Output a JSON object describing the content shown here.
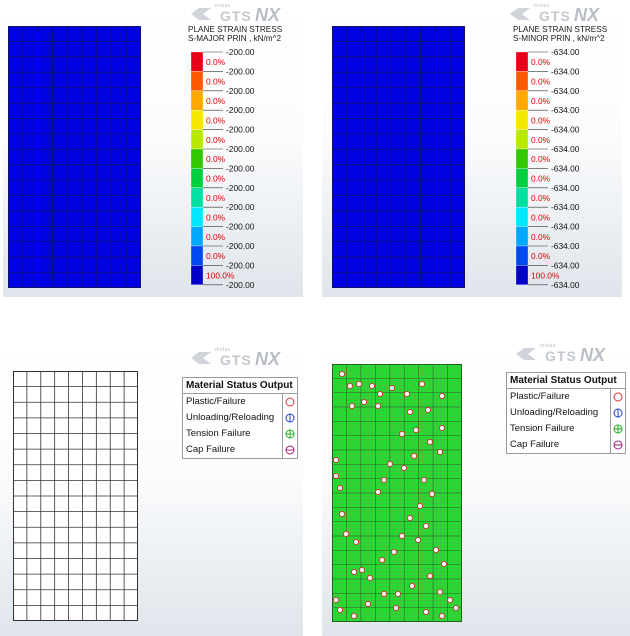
{
  "logo": {
    "midas": "midas",
    "gts": "GTS",
    "nx": "NX"
  },
  "panels": [
    {
      "legend_title": [
        "PLANE STRAIN STRESS",
        "S-MAJOR PRIN , kN/m^2"
      ],
      "values": [
        "-200.00",
        "-200.00",
        "-200.00",
        "-200.00",
        "-200.00",
        "-200.00",
        "-200.00",
        "-200.00",
        "-200.00",
        "-200.00",
        "-200.00",
        "-200.00",
        "-200.00"
      ],
      "percents": [
        "0.0%",
        "0.0%",
        "0.0%",
        "0.0%",
        "0.0%",
        "0.0%",
        "0.0%",
        "0.0%",
        "0.0%",
        "0.0%",
        "0.0%",
        "100.0%"
      ]
    },
    {
      "legend_title": [
        "PLANE STRAIN STRESS",
        "S-MINOR PRIN , kN/m^2"
      ],
      "values": [
        "-634.00",
        "-634.00",
        "-634.00",
        "-634.00",
        "-634.00",
        "-634.00",
        "-634.00",
        "-634.00",
        "-634.00",
        "-634.00",
        "-634.00",
        "-634.00",
        "-634.00"
      ],
      "percents": [
        "0.0%",
        "0.0%",
        "0.0%",
        "0.0%",
        "0.0%",
        "0.0%",
        "0.0%",
        "0.0%",
        "0.0%",
        "0.0%",
        "0.0%",
        "100.0%"
      ]
    }
  ],
  "legend_colors": [
    "#e8001a",
    "#ff5a00",
    "#ffa800",
    "#f4e800",
    "#b8e800",
    "#32c800",
    "#00d040",
    "#00e0a0",
    "#00e8ff",
    "#00a8ff",
    "#0048f0",
    "#0000c8"
  ],
  "status_table": {
    "title": "Material Status Output",
    "rows": [
      {
        "label": "Plastic/Failure",
        "icon": "circle-icon",
        "color": "#e03030"
      },
      {
        "label": "Unloading/Reloading",
        "icon": "circle-vertical-line-icon",
        "color": "#2040d0"
      },
      {
        "label": "Tension Failure",
        "icon": "circle-plus-icon",
        "color": "#20b020"
      },
      {
        "label": "Cap Failure",
        "icon": "circle-horizontal-line-icon",
        "color": "#a02080"
      }
    ]
  },
  "mesh_colors": {
    "stress": "#0000e0",
    "status_empty": "#ffffff",
    "status_filled": "#22e02a"
  }
}
